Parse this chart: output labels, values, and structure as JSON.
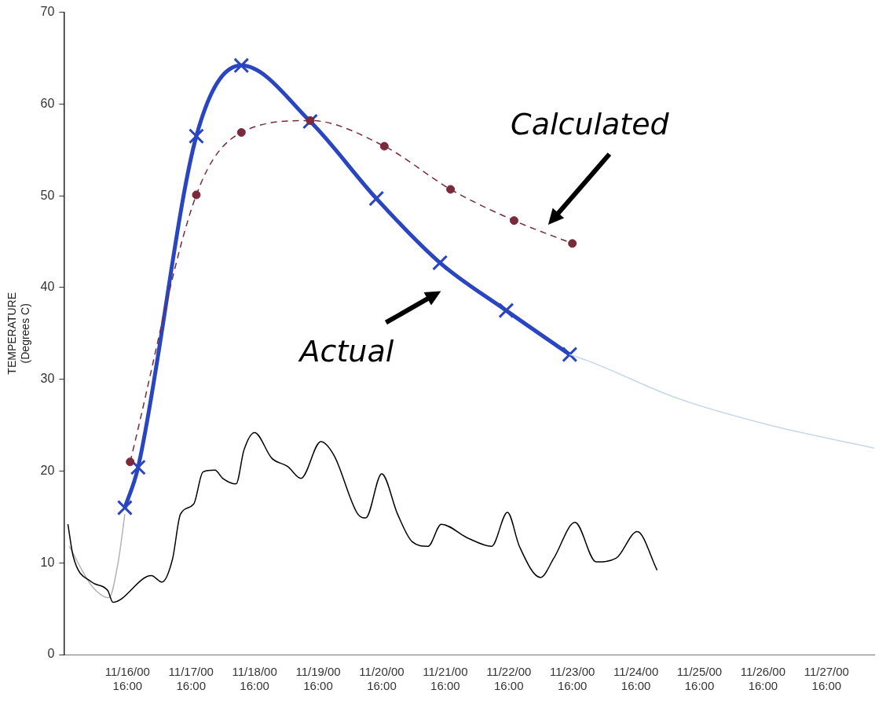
{
  "chart_data": {
    "type": "line",
    "ylabel": "TEMPERATURE\n(Degrees C)",
    "xlim": [
      "2000-11-15T16:00",
      "2000-11-28T10:00"
    ],
    "xticks": [
      {
        "value": "2000-11-16T16:00",
        "label": "11/16/00\n16:00"
      },
      {
        "value": "2000-11-17T16:00",
        "label": "11/17/00\n16:00"
      },
      {
        "value": "2000-11-18T16:00",
        "label": "11/18/00\n16:00"
      },
      {
        "value": "2000-11-19T16:00",
        "label": "11/19/00\n16:00"
      },
      {
        "value": "2000-11-20T16:00",
        "label": "11/20/00\n16:00"
      },
      {
        "value": "2000-11-21T16:00",
        "label": "11/21/00\n16:00"
      },
      {
        "value": "2000-11-22T16:00",
        "label": "11/22/00\n16:00"
      },
      {
        "value": "2000-11-23T16:00",
        "label": "11/23/00\n16:00"
      },
      {
        "value": "2000-11-24T16:00",
        "label": "11/24/00\n16:00"
      },
      {
        "value": "2000-11-25T16:00",
        "label": "11/25/00\n16:00"
      },
      {
        "value": "2000-11-26T16:00",
        "label": "11/26/00\n16:00"
      },
      {
        "value": "2000-11-27T16:00",
        "label": "11/27/00\n16:00"
      }
    ],
    "ylim": [
      0,
      70
    ],
    "yticks": [
      0,
      10,
      20,
      30,
      40,
      50,
      60,
      70
    ],
    "legend": false,
    "annotations": [
      "Calculated",
      "Actual"
    ],
    "series": [
      {
        "color": "#000000",
        "marker": "none",
        "line_style": "solid",
        "x": [
          "2000-11-15T17:30",
          "2000-11-15T19:30",
          "2000-11-16T02:30",
          "2000-11-16T08:30",
          "2000-11-16T10:30",
          "2000-11-17T01:00",
          "2000-11-17T05:00",
          "2000-11-17T09:00",
          "2000-11-17T12:00",
          "2000-11-17T17:00",
          "2000-11-17T20:30",
          "2000-11-18T01:00",
          "2000-11-18T04:00",
          "2000-11-18T09:00",
          "2000-11-18T12:00",
          "2000-11-18T16:00",
          "2000-11-18T22:30",
          "2000-11-19T04:30",
          "2000-11-19T09:30",
          "2000-11-19T17:00",
          "2000-11-19T22:00",
          "2000-11-20T07:00",
          "2000-11-20T10:00",
          "2000-11-20T16:00",
          "2000-11-20T22:00",
          "2000-11-21T03:30",
          "2000-11-21T09:30",
          "2000-11-21T14:30",
          "2000-11-22T00:30",
          "2000-11-22T09:30",
          "2000-11-22T15:30",
          "2000-11-22T20:00",
          "2000-11-23T04:00",
          "2000-11-23T09:00",
          "2000-11-23T17:00",
          "2000-11-24T01:00",
          "2000-11-24T08:30",
          "2000-11-24T16:30",
          "2000-11-25T00:00"
        ],
        "values": [
          14.2,
          10.7,
          7.9,
          7,
          5.7,
          8.6,
          7.9,
          10.4,
          15.3,
          16.4,
          19.9,
          20.1,
          19.2,
          18.6,
          22.3,
          24.2,
          21.4,
          20.5,
          19.2,
          23.2,
          21.7,
          15.3,
          14.9,
          19.7,
          15.3,
          12.3,
          11.8,
          14.2,
          12.7,
          11.8,
          15.5,
          11.8,
          8.4,
          10.5,
          14.4,
          10.1,
          10.5,
          13.4,
          9.2
        ]
      },
      {
        "color": "#b4b4b4",
        "marker": "none",
        "line_style": "solid",
        "x": [
          "2000-11-15T18:00",
          "2000-11-16T02:30",
          "2000-11-16T09:00",
          "2000-11-16T12:30",
          "2000-11-16T15:00"
        ],
        "values": [
          11.8,
          7.5,
          6.2,
          10.1,
          15.3
        ]
      },
      {
        "color": "#c5d8ea",
        "marker": "none",
        "line_style": "solid",
        "x": [
          "2000-11-23T15:00",
          "2000-11-23T22:00",
          "2000-11-25T08:00",
          "2000-11-26T20:00",
          "2000-11-28T10:00"
        ],
        "values": [
          32.7,
          32,
          27.9,
          24.9,
          22.5
        ]
      },
      {
        "color": "#7a2a3a",
        "marker": "circle",
        "line_style": "dashed",
        "x": [
          "2000-11-16T17:00",
          "2000-11-17T18:00",
          "2000-11-18T11:00",
          "2000-11-19T13:00",
          "2000-11-20T17:00",
          "2000-11-21T18:00",
          "2000-11-22T18:00",
          "2000-11-23T16:00"
        ],
        "values": [
          21,
          50.1,
          56.9,
          58.2,
          55.4,
          50.7,
          47.3,
          44.8
        ]
      },
      {
        "color": "#2a45c0",
        "marker": "cross",
        "line_style": "solid",
        "x": [
          "2000-11-16T15:00",
          "2000-11-16T20:00",
          "2000-11-17T18:00",
          "2000-11-18T11:00",
          "2000-11-19T13:00",
          "2000-11-20T14:00",
          "2000-11-21T14:00",
          "2000-11-22T15:00",
          "2000-11-23T15:00"
        ],
        "values": [
          16,
          20.4,
          56.5,
          64.2,
          58.1,
          49.7,
          42.7,
          37.5,
          32.7
        ]
      }
    ]
  }
}
